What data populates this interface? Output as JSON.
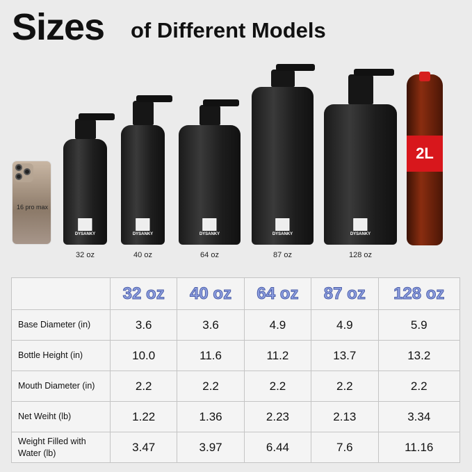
{
  "title": {
    "main": "Sizes",
    "sub": "of Different Models"
  },
  "phone": {
    "label": "16 pro max"
  },
  "bottles": [
    {
      "label": "32 oz",
      "brand": "DYSANKY"
    },
    {
      "label": "40 oz",
      "brand": "DYSANKY"
    },
    {
      "label": "64 oz",
      "brand": "DYSANKY"
    },
    {
      "label": "87 oz",
      "brand": "DYSANKY"
    },
    {
      "label": "128 oz",
      "brand": "DYSANKY"
    }
  ],
  "soda": {
    "label": "2L"
  },
  "table": {
    "headers": [
      "",
      "32 oz",
      "40 oz",
      "64 oz",
      "87 oz",
      "128 oz"
    ],
    "rows": [
      {
        "label": "Base Diameter (in)",
        "values": [
          "3.6",
          "3.6",
          "4.9",
          "4.9",
          "5.9"
        ]
      },
      {
        "label": "Bottle Height (in)",
        "values": [
          "10.0",
          "11.6",
          "11.2",
          "13.7",
          "13.2"
        ]
      },
      {
        "label": "Mouth Diameter (in)",
        "values": [
          "2.2",
          "2.2",
          "2.2",
          "2.2",
          "2.2"
        ]
      },
      {
        "label": "Net Weiht (lb)",
        "values": [
          "1.22",
          "1.36",
          "2.23",
          "2.13",
          "3.34"
        ]
      },
      {
        "label": "Weight Filled with Water (lb)",
        "values": [
          "3.47",
          "3.97",
          "6.44",
          "7.6",
          "11.16"
        ]
      }
    ]
  },
  "colors": {
    "header_text": "#8e9fe0",
    "soda_label": "#d8171c"
  }
}
